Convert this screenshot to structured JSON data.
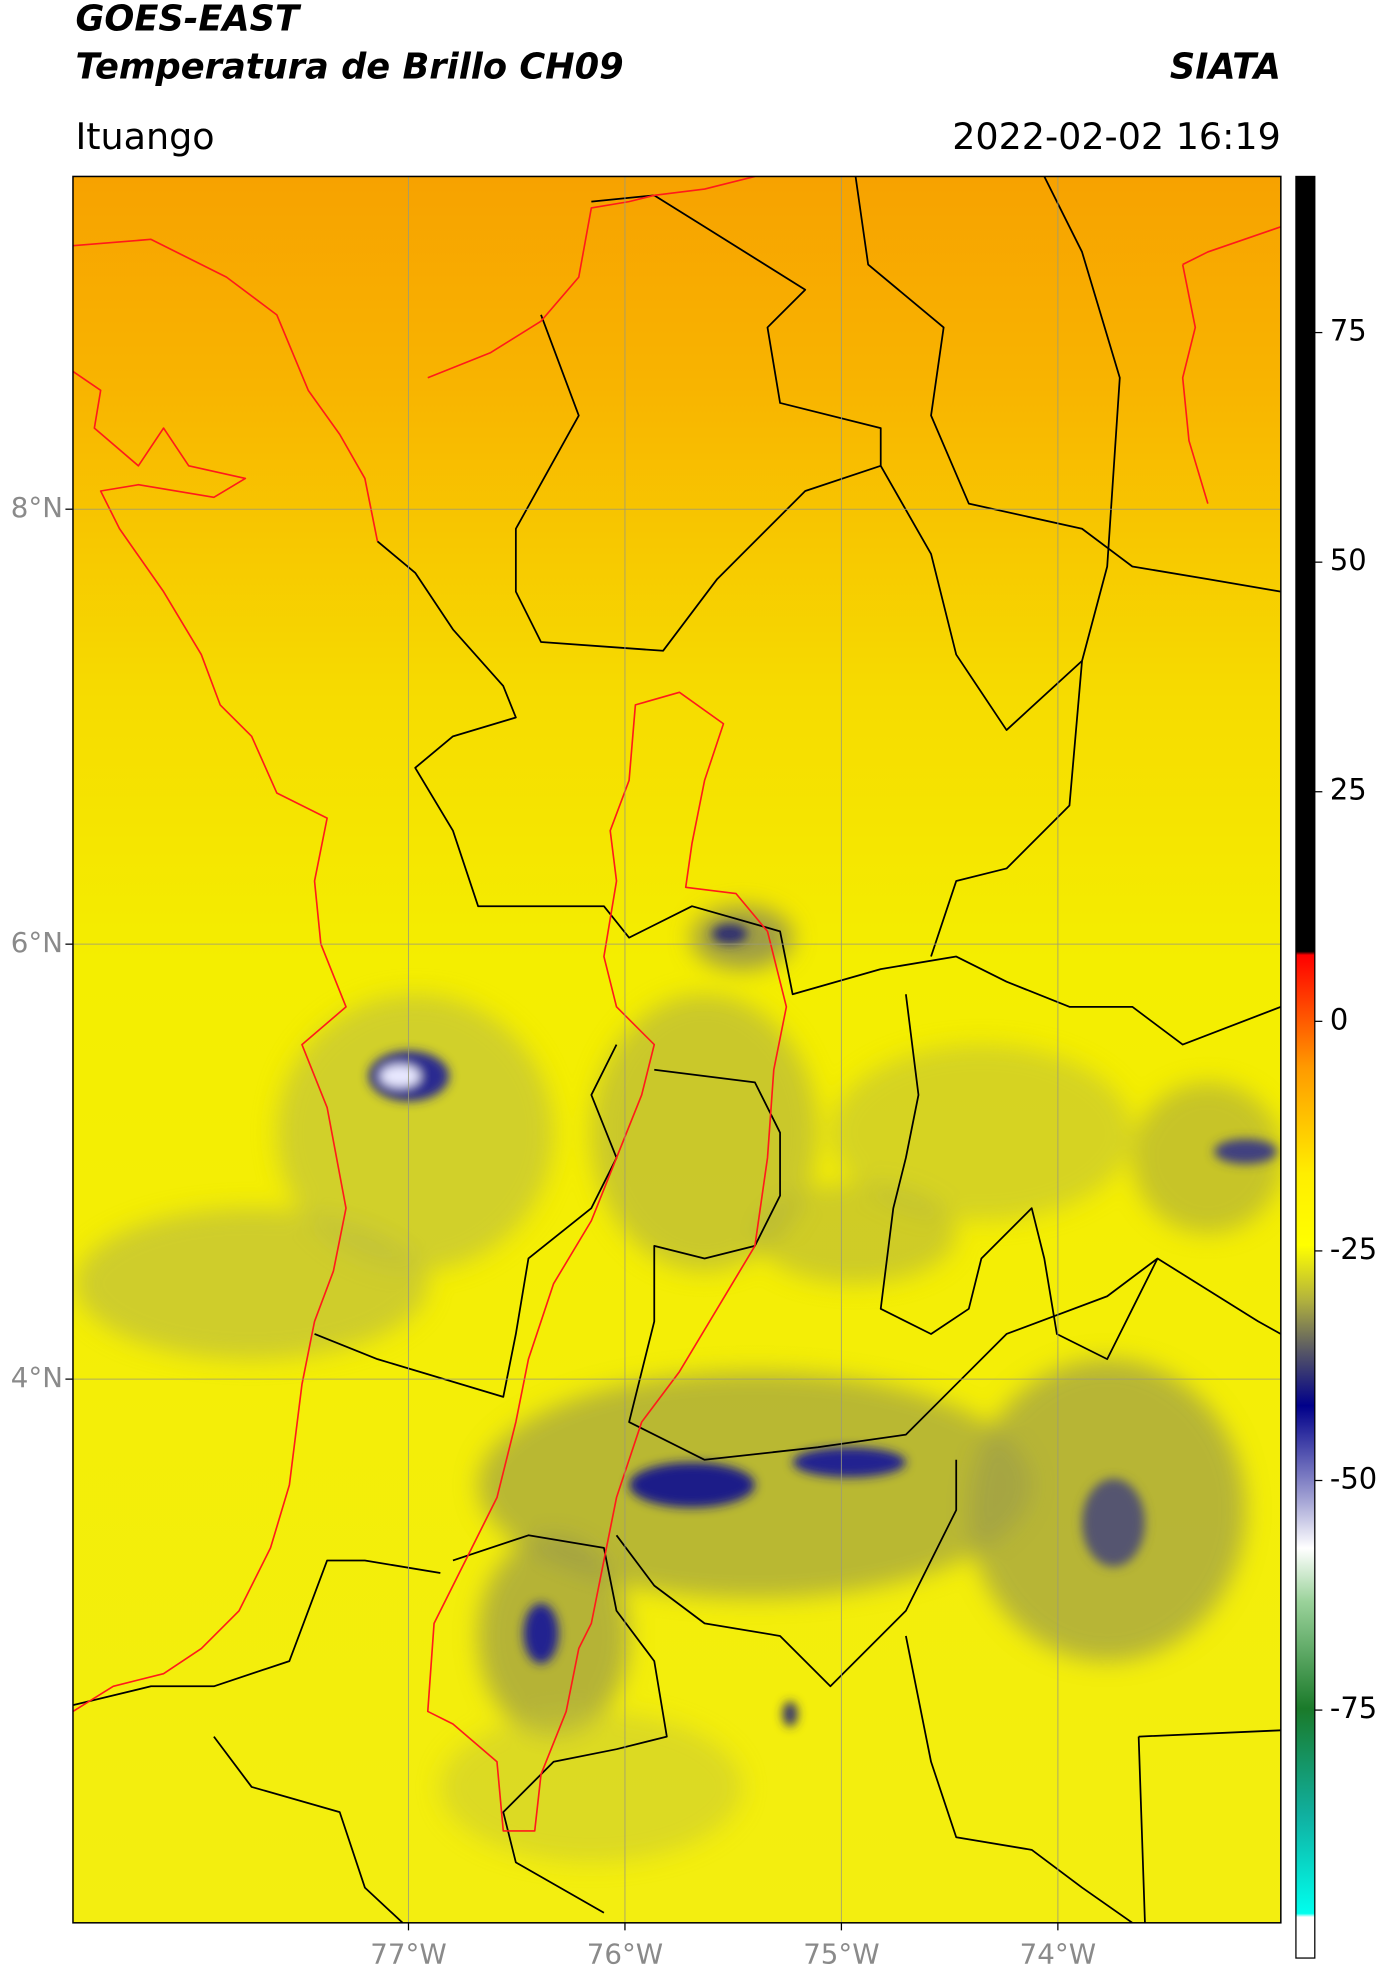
{
  "header": {
    "title": "GOES-EAST",
    "subtitle": "Temperatura de Brillo CH09",
    "agency": "SIATA",
    "location": "Ituango",
    "datetime": "2022-02-02 16:19"
  },
  "map": {
    "xlim": [
      -78.55,
      -72.97
    ],
    "ylim": [
      1.5,
      9.53
    ],
    "xticks": [
      {
        "value": -77,
        "label": "77°W"
      },
      {
        "value": -76,
        "label": "76°W"
      },
      {
        "value": -75,
        "label": "75°W"
      },
      {
        "value": -74,
        "label": "74°W"
      }
    ],
    "yticks": [
      {
        "value": 8,
        "label": "8°N"
      },
      {
        "value": 6,
        "label": "6°N"
      },
      {
        "value": 4,
        "label": "4°N"
      }
    ],
    "grid": true
  },
  "colorbar": {
    "range": [
      -102,
      92
    ],
    "ticks": [
      75,
      50,
      25,
      0,
      -25,
      -50,
      -75
    ]
  }
}
